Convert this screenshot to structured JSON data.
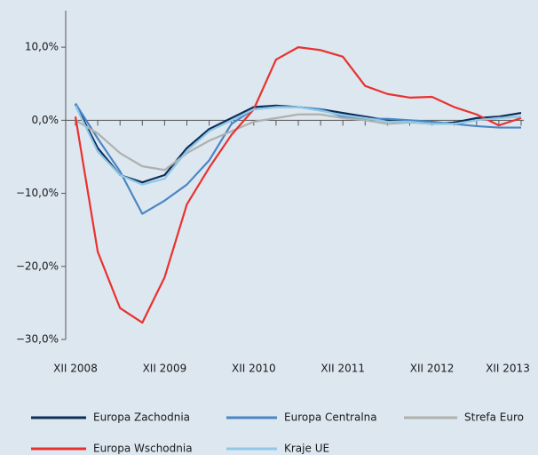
{
  "chart_data": {
    "type": "line",
    "categories": [
      "XII 2008",
      null,
      null,
      null,
      "XII 2009",
      null,
      null,
      null,
      "XII 2010",
      null,
      null,
      null,
      "XII 2011",
      null,
      null,
      null,
      "XII 2012",
      null,
      null,
      null,
      "XII 2013"
    ],
    "series": [
      {
        "name": "Europa Zachodnia",
        "color": "#0d2d5a",
        "values": [
          2.2,
          -3.8,
          -7.5,
          -8.5,
          -7.5,
          -3.8,
          -1.2,
          0.3,
          1.8,
          2,
          1.8,
          1.5,
          1,
          0.5,
          0,
          -0.2,
          -0.5,
          -0.3,
          0.3,
          0.5,
          1
        ]
      },
      {
        "name": "Europa Centralna",
        "color": "#4a86c5",
        "values": [
          2.3,
          -2.5,
          -7,
          -12.8,
          -11,
          -8.8,
          -5.5,
          -0.5,
          1.5,
          1.8,
          1.8,
          1.5,
          0.5,
          0.2,
          0.2,
          0,
          -0.2,
          -0.5,
          -0.8,
          -1,
          -1
        ]
      },
      {
        "name": "Strefa Euro",
        "color": "#b0b0ad",
        "values": [
          0,
          -1.8,
          -4.5,
          -6.3,
          -6.8,
          -4.5,
          -2.8,
          -1.5,
          -0.2,
          0.3,
          0.8,
          0.8,
          0.3,
          0,
          -0.5,
          -0.3,
          -0.5,
          -0.5,
          0,
          0.3,
          0.5
        ]
      },
      {
        "name": "Europa Wschodnia",
        "color": "#e8322f",
        "values": [
          0.5,
          -18,
          -25.7,
          -27.7,
          -21.5,
          -11.5,
          -6.5,
          -2,
          1.5,
          8.3,
          10,
          9.6,
          8.7,
          4.7,
          3.6,
          3.1,
          3.2,
          1.8,
          0.8,
          -0.7,
          0.3
        ]
      },
      {
        "name": "Kraje UE",
        "color": "#8ec9e6",
        "values": [
          2,
          -4.3,
          -7.5,
          -8.8,
          -8,
          -4.2,
          -1.5,
          0,
          1.5,
          1.8,
          1.8,
          1.3,
          0.7,
          0.3,
          -0.2,
          -0.2,
          -0.5,
          -0.5,
          0,
          0.3,
          0.5
        ]
      }
    ],
    "ylim": [
      -30,
      15
    ],
    "yticks": [
      {
        "value": 10,
        "label": "10,0%"
      },
      {
        "value": 0,
        "label": "0,0%"
      },
      {
        "value": -10,
        "label": "−10,0%"
      },
      {
        "value": -20,
        "label": "−20,0%"
      },
      {
        "value": -30,
        "label": "−30,0%"
      }
    ]
  }
}
